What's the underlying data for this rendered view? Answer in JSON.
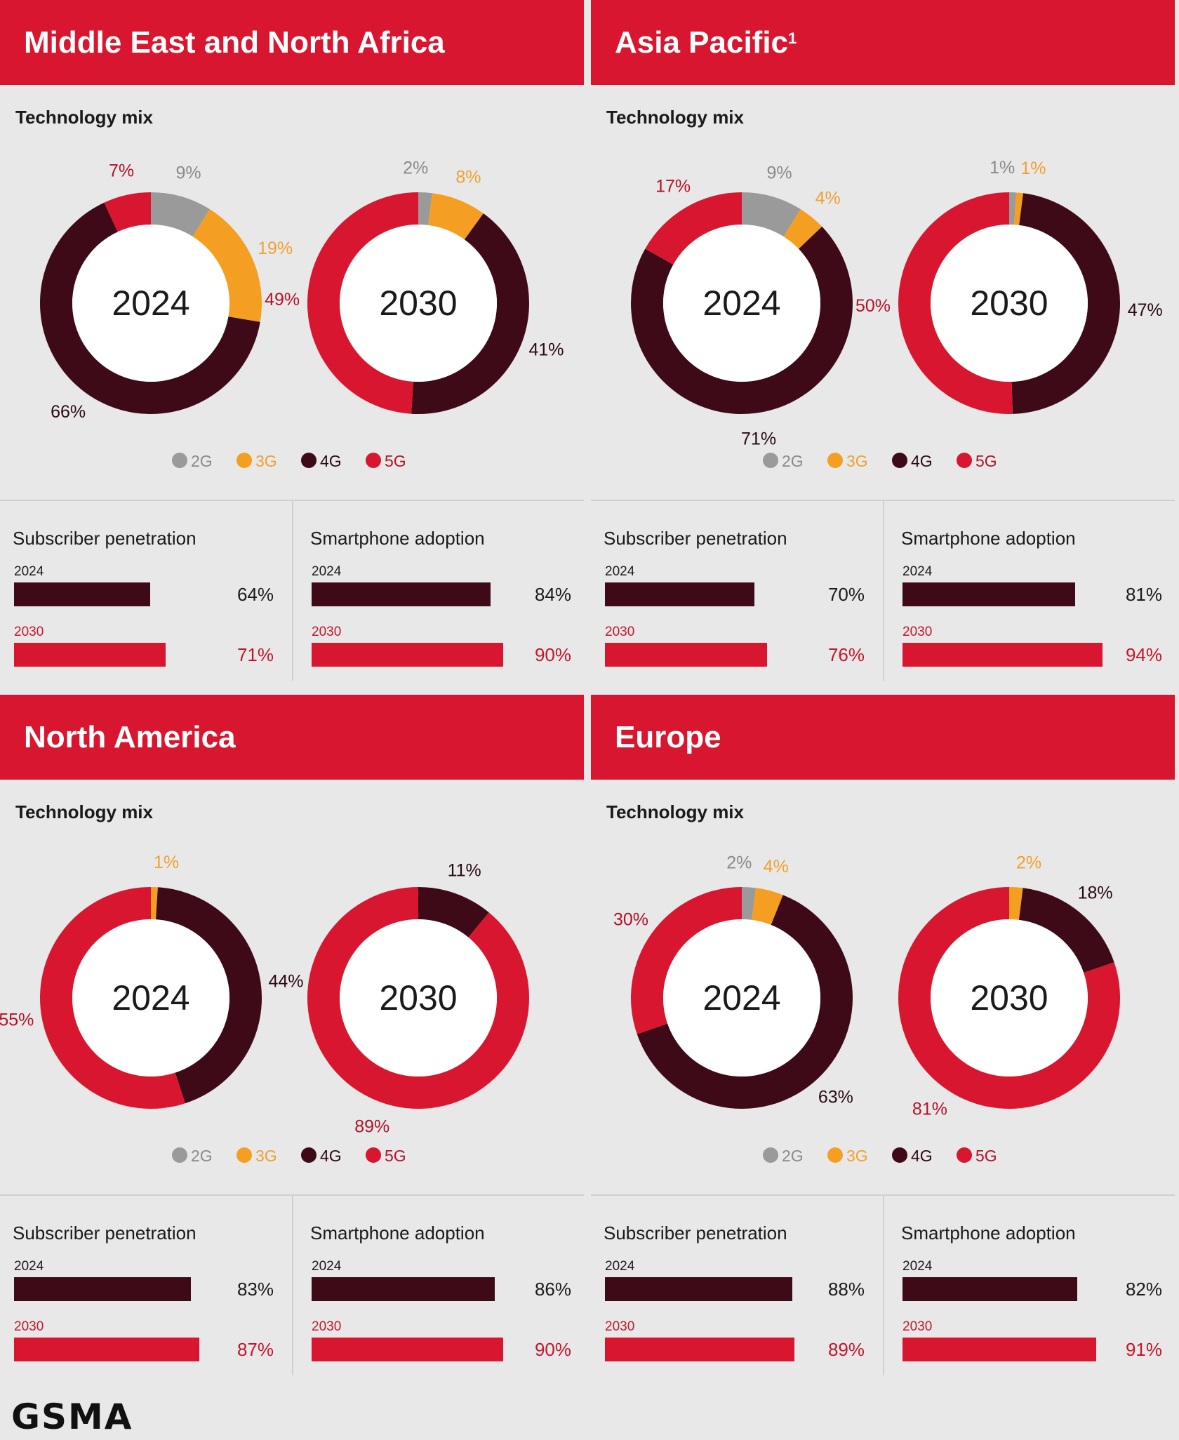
{
  "colors": {
    "2G": "#9a9a9a",
    "3G": "#f59f22",
    "4G": "#3e0a17",
    "5G": "#d8162f"
  },
  "legend": [
    "2G",
    "3G",
    "4G",
    "5G"
  ],
  "labels": {
    "technology_mix": "Technology mix",
    "subscriber_penetration": "Subscriber penetration",
    "smartphone_adoption": "Smartphone adoption",
    "year_2024": "2024",
    "year_2030": "2030"
  },
  "logo": "GSMA",
  "chart_data": [
    {
      "type": "pie",
      "title": "Middle East and North Africa",
      "footnote": "",
      "tech_mix": [
        {
          "year": "2024",
          "segments": [
            {
              "name": "2G",
              "value": 9
            },
            {
              "name": "3G",
              "value": 19
            },
            {
              "name": "4G",
              "value": 66
            },
            {
              "name": "5G",
              "value": 7
            }
          ]
        },
        {
          "year": "2030",
          "segments": [
            {
              "name": "2G",
              "value": 2
            },
            {
              "name": "3G",
              "value": 8
            },
            {
              "name": "4G",
              "value": 41
            },
            {
              "name": "5G",
              "value": 49
            }
          ]
        }
      ],
      "subscriber_penetration": {
        "2024": 64,
        "2030": 71
      },
      "smartphone_adoption": {
        "2024": 84,
        "2030": 90
      }
    },
    {
      "type": "pie",
      "title": "Asia Pacific",
      "footnote": "1",
      "tech_mix": [
        {
          "year": "2024",
          "segments": [
            {
              "name": "2G",
              "value": 9
            },
            {
              "name": "3G",
              "value": 4
            },
            {
              "name": "4G",
              "value": 71
            },
            {
              "name": "5G",
              "value": 17
            }
          ]
        },
        {
          "year": "2030",
          "segments": [
            {
              "name": "2G",
              "value": 1
            },
            {
              "name": "3G",
              "value": 1
            },
            {
              "name": "4G",
              "value": 47
            },
            {
              "name": "5G",
              "value": 50
            }
          ]
        }
      ],
      "subscriber_penetration": {
        "2024": 70,
        "2030": 76
      },
      "smartphone_adoption": {
        "2024": 81,
        "2030": 94
      }
    },
    {
      "type": "pie",
      "title": "North America",
      "footnote": "",
      "tech_mix": [
        {
          "year": "2024",
          "segments": [
            {
              "name": "3G",
              "value": 1
            },
            {
              "name": "4G",
              "value": 44
            },
            {
              "name": "5G",
              "value": 55
            }
          ]
        },
        {
          "year": "2030",
          "segments": [
            {
              "name": "4G",
              "value": 11
            },
            {
              "name": "5G",
              "value": 89
            }
          ]
        }
      ],
      "subscriber_penetration": {
        "2024": 83,
        "2030": 87
      },
      "smartphone_adoption": {
        "2024": 86,
        "2030": 90
      }
    },
    {
      "type": "pie",
      "title": "Europe",
      "footnote": "",
      "tech_mix": [
        {
          "year": "2024",
          "segments": [
            {
              "name": "2G",
              "value": 2
            },
            {
              "name": "3G",
              "value": 4
            },
            {
              "name": "4G",
              "value": 63
            },
            {
              "name": "5G",
              "value": 30
            }
          ]
        },
        {
          "year": "2030",
          "segments": [
            {
              "name": "3G",
              "value": 2
            },
            {
              "name": "4G",
              "value": 18
            },
            {
              "name": "5G",
              "value": 81
            }
          ]
        }
      ],
      "subscriber_penetration": {
        "2024": 88,
        "2030": 89
      },
      "smartphone_adoption": {
        "2024": 82,
        "2030": 91
      }
    }
  ]
}
